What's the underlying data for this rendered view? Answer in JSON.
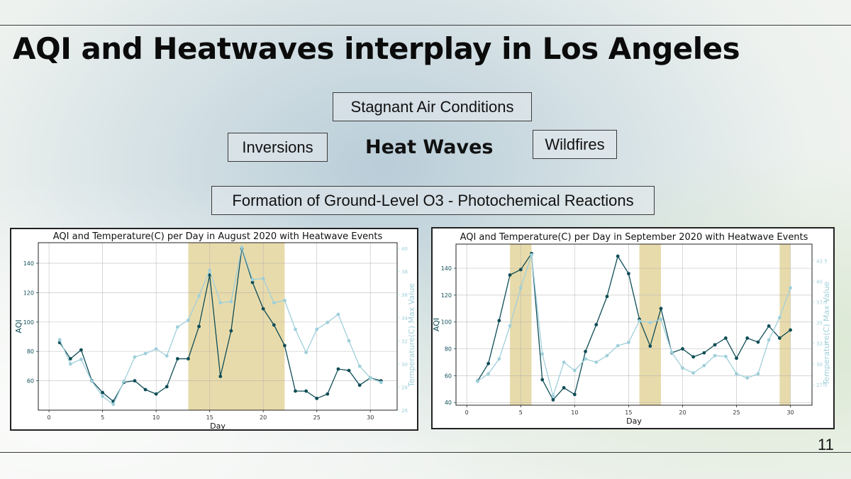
{
  "slide": {
    "title": "AQI and Heatwaves interplay in Los Angeles",
    "center_label": "Heat Waves",
    "tags": {
      "stagnant": "Stagnant Air Conditions",
      "inversions": "Inversions",
      "wildfires": "Wildfires",
      "formation": "Formation of Ground-Level O3 - Photochemical Reactions"
    },
    "page_number": "11"
  },
  "colors": {
    "aqi": "#0f4d57",
    "temp": "#9fcfda",
    "heatwave": "#e7d9a6"
  },
  "chart_data": [
    {
      "type": "line",
      "title": "AQI and Temperature(C) per Day in August 2020 with Heatwave Events",
      "xlabel": "Day",
      "ylabel": "AQI",
      "y2label": "Temperature(C) Max Value",
      "xlim": [
        -1,
        32.5
      ],
      "ylim": [
        40,
        154
      ],
      "y2lim": [
        26,
        40.5
      ],
      "xticks": [
        0,
        5,
        10,
        15,
        20,
        25,
        30
      ],
      "yticks": [
        60,
        80,
        100,
        120,
        140
      ],
      "y2ticks": [
        26,
        28,
        30,
        32,
        34,
        36,
        38,
        40
      ],
      "grid": true,
      "heatwave_spans": [
        [
          13,
          22
        ]
      ],
      "x": [
        1,
        2,
        3,
        4,
        5,
        6,
        7,
        8,
        9,
        10,
        11,
        12,
        13,
        14,
        15,
        16,
        17,
        18,
        19,
        20,
        21,
        22,
        23,
        24,
        25,
        26,
        27,
        28,
        29,
        30,
        31
      ],
      "series": [
        {
          "axis": "left",
          "values": [
            86,
            75,
            81,
            60,
            52,
            46,
            59,
            60,
            54,
            51,
            56,
            75,
            75,
            97,
            132,
            63,
            94,
            150,
            127,
            109,
            98,
            84,
            53,
            53,
            48,
            51,
            68,
            67,
            57,
            62,
            60
          ]
        },
        {
          "axis": "right",
          "values": [
            32.1,
            30.0,
            30.4,
            28.5,
            27.2,
            26.5,
            28.5,
            30.6,
            30.9,
            31.3,
            30.7,
            33.2,
            33.8,
            35.9,
            38.1,
            35.3,
            35.4,
            40.1,
            37.3,
            37.4,
            35.3,
            35.5,
            33.0,
            31.0,
            33.0,
            33.6,
            34.3,
            32.0,
            29.8,
            28.8,
            28.4
          ]
        }
      ]
    },
    {
      "type": "line",
      "title": "AQI and Temperature(C) per Day in September 2020 with Heatwave Events",
      "xlabel": "Day",
      "ylabel": "AQI",
      "y2label": "Temperature(C) Max Value",
      "xlim": [
        -1,
        32
      ],
      "ylim": [
        38,
        158
      ],
      "y2lim": [
        25,
        44.5
      ],
      "xticks": [
        0,
        5,
        10,
        15,
        20,
        25,
        30
      ],
      "yticks": [
        40,
        60,
        80,
        100,
        120,
        140
      ],
      "y2ticks": [
        27.5,
        30.0,
        32.5,
        35.0,
        37.5,
        40.0,
        42.5
      ],
      "grid": true,
      "heatwave_spans": [
        [
          4,
          6
        ],
        [
          16,
          18
        ],
        [
          29,
          30
        ]
      ],
      "x": [
        1,
        2,
        3,
        4,
        5,
        6,
        7,
        8,
        9,
        10,
        11,
        12,
        13,
        14,
        15,
        16,
        17,
        18,
        19,
        20,
        21,
        22,
        23,
        24,
        25,
        26,
        27,
        28,
        29,
        30
      ],
      "series": [
        {
          "axis": "left",
          "values": [
            56,
            69,
            101,
            135,
            139,
            151,
            57,
            42,
            51,
            46,
            78,
            98,
            119,
            149,
            136,
            102,
            82,
            110,
            77,
            80,
            74,
            77,
            83,
            88,
            73,
            88,
            85,
            97,
            88,
            94
          ]
        },
        {
          "axis": "right",
          "values": [
            27.9,
            28.8,
            30.6,
            34.6,
            39.2,
            43.2,
            31.2,
            26.1,
            30.2,
            29.2,
            30.6,
            30.2,
            31.0,
            32.2,
            32.6,
            35.2,
            35.0,
            35.4,
            31.4,
            29.5,
            28.9,
            29.8,
            31.0,
            30.9,
            28.8,
            28.3,
            28.8,
            32.9,
            35.6,
            39.2
          ]
        }
      ]
    }
  ]
}
